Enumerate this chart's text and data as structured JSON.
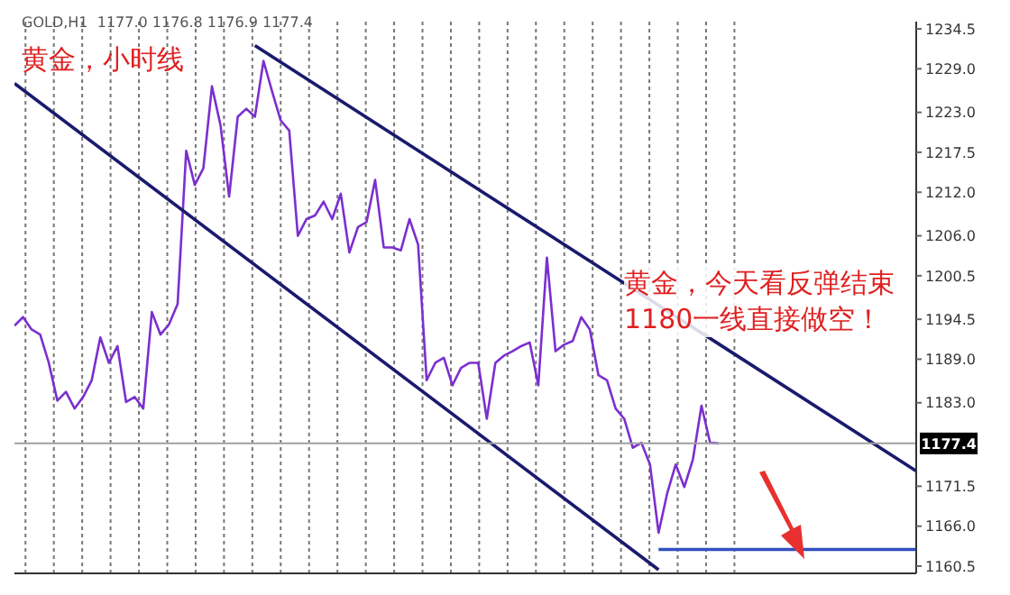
{
  "chart_data": {
    "type": "line",
    "categories": [
      null,
      null,
      null,
      null,
      null,
      null,
      null,
      null,
      null,
      null,
      null,
      null,
      null,
      null,
      null,
      null,
      null,
      null,
      null,
      null,
      null,
      null,
      null,
      null,
      null,
      null,
      null,
      null,
      null,
      null,
      null,
      null,
      null,
      null,
      null,
      null,
      null,
      null,
      null,
      null,
      null,
      null,
      null,
      null,
      null,
      null,
      null,
      null,
      null,
      null,
      null,
      null,
      null,
      null,
      null,
      null,
      null,
      null,
      null,
      null,
      null,
      null,
      null,
      null,
      null,
      null,
      null,
      null,
      null,
      null,
      null,
      null,
      null,
      null,
      null,
      null,
      null,
      null,
      null,
      null,
      null,
      null,
      null,
      null,
      null,
      null,
      null,
      null,
      null,
      null,
      null,
      null,
      null,
      null,
      null,
      null,
      null,
      null,
      null,
      null,
      null,
      null,
      null,
      null,
      null,
      null
    ],
    "ylim": [
      1159.5,
      1235.5
    ],
    "yticks": [
      {
        "value": 1160.5,
        "label": "1160.5"
      },
      {
        "value": 1166,
        "label": "1166.0"
      },
      {
        "value": 1171.5,
        "label": "1171.5"
      },
      {
        "value": 1183,
        "label": "1183.0"
      },
      {
        "value": 1189,
        "label": "1189.0"
      },
      {
        "value": 1194.5,
        "label": "1194.5"
      },
      {
        "value": 1200.5,
        "label": "1200.5"
      },
      {
        "value": 1206,
        "label": "1206.0"
      },
      {
        "value": 1212,
        "label": "1212.0"
      },
      {
        "value": 1217.5,
        "label": "1217.5"
      },
      {
        "value": 1223,
        "label": "1223.0"
      },
      {
        "value": 1229,
        "label": "1229.0"
      },
      {
        "value": 1234.5,
        "label": "1234.5"
      }
    ],
    "tick_labels": "y",
    "grid": "x",
    "series": [
      {
        "color": "#7b2fd0",
        "values": [
          1193.6,
          1194.8,
          1193.1,
          1192.4,
          1188.5,
          1183.3,
          1184.5,
          1182.2,
          1183.8,
          1186.1,
          1192.0,
          1188.5,
          1190.8,
          1183.1,
          1183.8,
          1182.2,
          1195.5,
          1192.4,
          1193.8,
          1196.6,
          1217.7,
          1213.0,
          1215.3,
          1226.6,
          1221.2,
          1211.4,
          1222.4,
          1223.5,
          1222.4,
          1230.1,
          1225.9,
          1221.9,
          1220.5,
          1206.0,
          1208.3,
          1208.8,
          1210.7,
          1208.3,
          1211.8,
          1203.7,
          1207.2,
          1207.9,
          1213.7,
          1204.4,
          1204.4,
          1204.0,
          1208.3,
          1204.8,
          1186.1,
          1188.5,
          1189.2,
          1185.4,
          1187.8,
          1188.5,
          1188.5,
          1180.8,
          1188.5,
          1189.5,
          1190.1,
          1190.8,
          1191.3,
          1185.4,
          1203.0,
          1190.1,
          1191.0,
          1191.5,
          1194.8,
          1193.1,
          1186.8,
          1186.1,
          1182.2,
          1180.8,
          1176.8,
          1177.5,
          1174.5,
          1165.1,
          1170.5,
          1174.5,
          1171.4,
          1175.2,
          1182.6,
          1177.5,
          1177.4,
          null,
          null,
          null,
          null,
          null,
          null,
          null,
          null,
          null,
          null,
          null,
          null,
          null,
          null,
          null,
          null,
          null,
          null,
          null,
          null,
          null,
          null,
          null
        ]
      },
      {
        "color": "#1a1a6e",
        "values": [
          null,
          null,
          null,
          null,
          null,
          null,
          null,
          null,
          null,
          null,
          null,
          null,
          null,
          null,
          null,
          null,
          null,
          null,
          null,
          null,
          null,
          null,
          null,
          null,
          null,
          null,
          null,
          null,
          1232.2,
          null,
          null,
          null,
          null,
          null,
          null,
          null,
          null,
          null,
          null,
          null,
          null,
          null,
          null,
          null,
          null,
          null,
          null,
          null,
          null,
          null,
          null,
          null,
          null,
          null,
          null,
          null,
          null,
          null,
          null,
          null,
          null,
          null,
          null,
          null,
          null,
          null,
          null,
          null,
          null,
          null,
          null,
          null,
          null,
          null,
          null,
          null,
          null,
          null,
          null,
          null,
          null,
          null,
          null,
          null,
          null,
          null,
          null,
          null,
          null,
          null,
          null,
          null,
          null,
          null,
          null,
          null,
          null,
          null,
          null,
          null,
          null,
          null,
          null,
          null,
          null,
          1173.6
        ]
      },
      {
        "color": "#1a1a6e",
        "values": [
          1227.0,
          null,
          null,
          null,
          null,
          null,
          null,
          null,
          null,
          null,
          null,
          null,
          null,
          null,
          null,
          null,
          null,
          null,
          null,
          null,
          null,
          null,
          null,
          null,
          null,
          null,
          null,
          null,
          null,
          null,
          null,
          null,
          null,
          null,
          null,
          null,
          null,
          null,
          null,
          null,
          null,
          null,
          null,
          null,
          null,
          null,
          null,
          null,
          null,
          null,
          null,
          null,
          null,
          null,
          null,
          null,
          null,
          null,
          null,
          null,
          null,
          null,
          null,
          null,
          null,
          null,
          null,
          null,
          null,
          null,
          null,
          null,
          null,
          null,
          null,
          1160.0,
          null,
          null,
          null,
          null,
          null,
          null,
          null,
          null,
          null,
          null,
          null,
          null,
          null,
          null,
          null,
          null,
          null,
          null,
          null,
          null,
          null,
          null,
          null,
          null,
          null,
          null,
          null,
          null,
          null,
          null
        ]
      },
      {
        "color": "#3050c0",
        "values": [
          null,
          null,
          null,
          null,
          null,
          null,
          null,
          null,
          null,
          null,
          null,
          null,
          null,
          null,
          null,
          null,
          null,
          null,
          null,
          null,
          null,
          null,
          null,
          null,
          null,
          null,
          null,
          null,
          null,
          null,
          null,
          null,
          null,
          null,
          null,
          null,
          null,
          null,
          null,
          null,
          null,
          null,
          null,
          null,
          null,
          null,
          null,
          null,
          null,
          null,
          null,
          null,
          null,
          null,
          null,
          null,
          null,
          null,
          null,
          null,
          null,
          null,
          null,
          null,
          null,
          null,
          null,
          null,
          null,
          null,
          null,
          null,
          null,
          null,
          null,
          1162.8,
          null,
          null,
          null,
          null,
          null,
          null,
          null,
          null,
          null,
          null,
          null,
          null,
          null,
          null,
          null,
          null,
          null,
          null,
          null,
          null,
          null,
          null,
          null,
          null,
          null,
          null,
          null,
          null,
          null,
          1162.8
        ]
      }
    ],
    "ref_lines": [
      {
        "axis": "y",
        "value": 1177.4,
        "label": "1177.4",
        "color": "#a0a0a0"
      }
    ],
    "annotations": [
      "GOLD,H1  1177.0 1176.8 1176.9 1177.4",
      "黄金，小时线",
      "黄金，今天看反弹结束\n1180一线直接做空！"
    ]
  }
}
